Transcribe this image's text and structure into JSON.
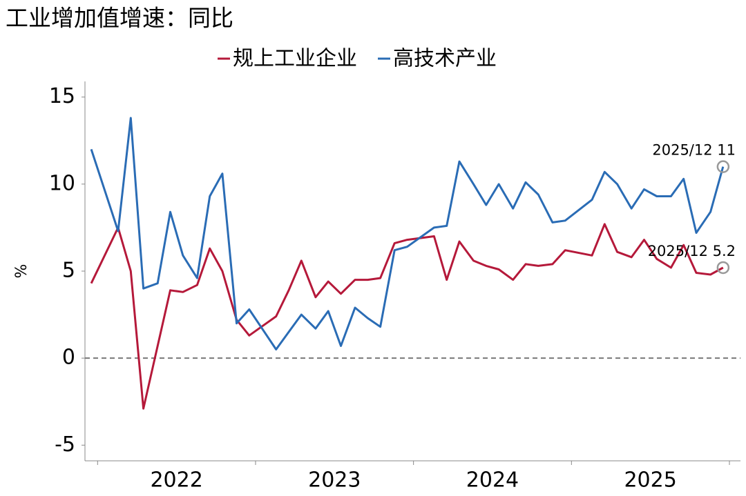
{
  "chart_data": {
    "type": "line",
    "title": "工业增加值增速：同比",
    "y_label": "%",
    "xlim": [
      2021.92,
      2026.07
    ],
    "xticks": [
      2022,
      2023,
      2024,
      2025,
      2026
    ],
    "xtick_labels": [
      {
        "value": 2022.5,
        "label": "2022"
      },
      {
        "value": 2023.5,
        "label": "2023"
      },
      {
        "value": 2024.5,
        "label": "2024"
      },
      {
        "value": 2025.5,
        "label": "2025"
      }
    ],
    "ylim": [
      -5.9,
      15.9
    ],
    "yticks": [
      -5,
      0,
      5,
      10,
      15
    ],
    "zero_line": true,
    "legend": "top",
    "x": [
      2021.96,
      2022.13,
      2022.21,
      2022.29,
      2022.38,
      2022.46,
      2022.54,
      2022.63,
      2022.71,
      2022.79,
      2022.88,
      2022.96,
      2023.13,
      2023.21,
      2023.29,
      2023.38,
      2023.46,
      2023.54,
      2023.63,
      2023.71,
      2023.79,
      2023.88,
      2023.96,
      2024.13,
      2024.21,
      2024.29,
      2024.38,
      2024.46,
      2024.54,
      2024.63,
      2024.71,
      2024.79,
      2024.88,
      2024.96,
      2025.13,
      2025.21,
      2025.29,
      2025.38,
      2025.46,
      2025.54,
      2025.63,
      2025.71,
      2025.79,
      2025.88,
      2025.96
    ],
    "series": [
      {
        "name": "规上工业企业",
        "color": "#b5193a",
        "values": [
          4.3,
          7.5,
          5.0,
          -2.9,
          0.7,
          3.9,
          3.8,
          4.2,
          6.3,
          5.0,
          2.2,
          1.3,
          2.4,
          3.9,
          5.6,
          3.5,
          4.4,
          3.7,
          4.5,
          4.5,
          4.6,
          6.6,
          6.8,
          7.0,
          4.5,
          6.7,
          5.6,
          5.3,
          5.1,
          4.5,
          5.4,
          5.3,
          5.4,
          6.2,
          5.9,
          7.7,
          6.1,
          5.8,
          6.8,
          5.7,
          5.2,
          6.5,
          4.9,
          4.8,
          5.2
        ]
      },
      {
        "name": "高技术产业",
        "color": "#2a6cb5",
        "values": [
          12.0,
          7.3,
          13.8,
          4.0,
          4.3,
          8.4,
          5.9,
          4.6,
          9.3,
          10.6,
          2.0,
          2.8,
          0.5,
          1.5,
          2.5,
          1.7,
          2.7,
          0.7,
          2.9,
          2.3,
          1.8,
          6.2,
          6.4,
          7.5,
          7.6,
          11.3,
          10.0,
          8.8,
          10.0,
          8.6,
          10.1,
          9.4,
          7.8,
          7.9,
          9.1,
          10.7,
          10.0,
          8.6,
          9.7,
          9.3,
          9.3,
          10.3,
          7.2,
          8.4,
          11.0
        ]
      }
    ],
    "annotations": [
      {
        "text": "2025/12 11",
        "series": 1
      },
      {
        "text": "2025/12 5.2",
        "series": 0
      }
    ]
  }
}
